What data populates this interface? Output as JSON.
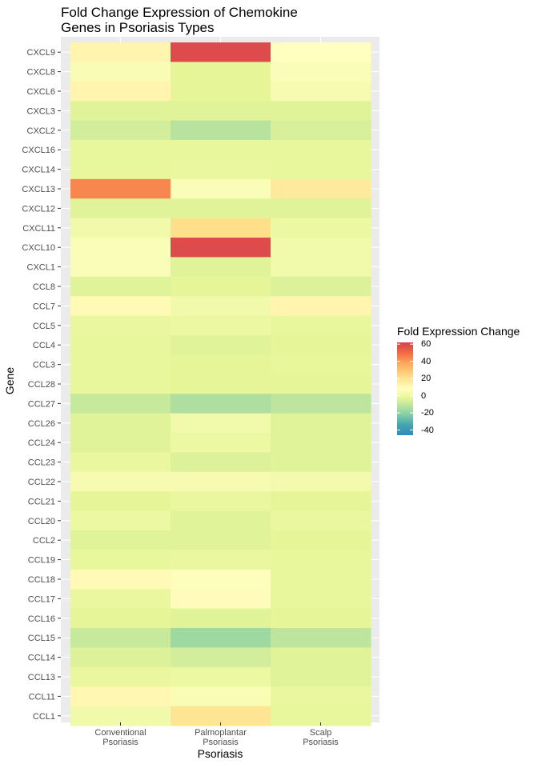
{
  "chart_data": {
    "type": "heatmap",
    "title_lines": [
      "Fold Change Expression of Chemokine",
      "Genes in Psoriasis Types"
    ],
    "xlabel": "Psoriasis",
    "ylabel": "Gene",
    "x_categories": [
      {
        "lines": [
          "Conventional",
          "Psoriasis"
        ]
      },
      {
        "lines": [
          "Palmoplantar",
          "Psoriasis"
        ]
      },
      {
        "lines": [
          "Scalp",
          "Psoriasis"
        ]
      }
    ],
    "y_categories": [
      "CXCL9",
      "CXCL8",
      "CXCL6",
      "CXCL3",
      "CXCL2",
      "CXCL16",
      "CXCL14",
      "CXCL13",
      "CXCL12",
      "CXCL11",
      "CXCL10",
      "CXCL1",
      "CCL8",
      "CCL7",
      "CCL5",
      "CCL4",
      "CCL3",
      "CCL28",
      "CCL27",
      "CCL26",
      "CCL24",
      "CCL23",
      "CCL22",
      "CCL21",
      "CCL20",
      "CCL2",
      "CCL19",
      "CCL18",
      "CCL17",
      "CCL16",
      "CCL15",
      "CCL14",
      "CCL13",
      "CCL11",
      "CCL1"
    ],
    "values": [
      [
        12,
        58,
        8
      ],
      [
        5,
        -3,
        6
      ],
      [
        12,
        -3,
        4
      ],
      [
        -4,
        -4,
        -4
      ],
      [
        -7,
        -12,
        -6
      ],
      [
        -2,
        -2,
        -2
      ],
      [
        -2,
        -1,
        -2
      ],
      [
        43,
        6,
        16
      ],
      [
        -4,
        -4,
        -4
      ],
      [
        2,
        20,
        0
      ],
      [
        6,
        58,
        2
      ],
      [
        6,
        -4,
        2
      ],
      [
        -4,
        -3,
        -5
      ],
      [
        10,
        2,
        12
      ],
      [
        -1,
        0,
        -2
      ],
      [
        -2,
        -4,
        -3
      ],
      [
        -2,
        -3,
        -2
      ],
      [
        -2,
        -3,
        -3
      ],
      [
        -9,
        -14,
        -11
      ],
      [
        -4,
        2,
        -4
      ],
      [
        -4,
        0,
        -4
      ],
      [
        -1,
        -5,
        -4
      ],
      [
        4,
        4,
        3
      ],
      [
        -3,
        -1,
        -3
      ],
      [
        0,
        -4,
        -1
      ],
      [
        -4,
        -4,
        -3
      ],
      [
        -2,
        -1,
        -2
      ],
      [
        10,
        7,
        -2
      ],
      [
        -1,
        9,
        -2
      ],
      [
        -3,
        -4,
        -3
      ],
      [
        -9,
        -17,
        -11
      ],
      [
        -5,
        -7,
        -4
      ],
      [
        -1,
        0,
        -4
      ],
      [
        11,
        5,
        -1
      ],
      [
        2,
        18,
        -2
      ]
    ],
    "legend": {
      "title": "Fold Expression Change",
      "ticks": [
        60,
        40,
        20,
        0,
        -20,
        -40
      ],
      "range": [
        -46,
        62
      ]
    }
  }
}
